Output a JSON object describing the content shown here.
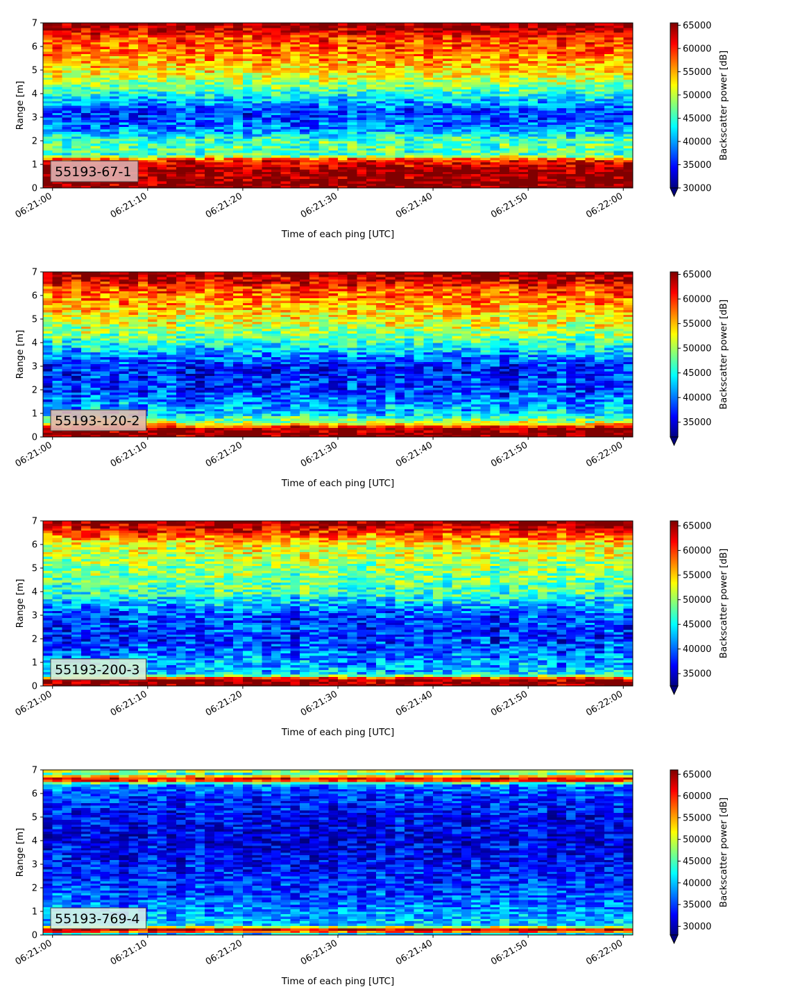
{
  "colors": {
    "colormap": "jet",
    "background": "#ffffff"
  },
  "chart_data": [
    {
      "type": "heatmap",
      "panel_label": "55193-67-1",
      "label_box_color": "#e0b0b0",
      "xlabel": "Time of each ping [UTC]",
      "ylabel": "Range [m]",
      "x_ticks": [
        "06:21:00",
        "06:21:10",
        "06:21:20",
        "06:21:30",
        "06:21:40",
        "06:21:50",
        "06:22:00"
      ],
      "x_range_seconds": [
        -1,
        61
      ],
      "ylim": [
        0,
        7
      ],
      "y_ticks": [
        "0",
        "1",
        "2",
        "3",
        "4",
        "5",
        "6",
        "7"
      ],
      "colorbar_label": "Backscatter power [dB]",
      "colorbar_extend": "min",
      "vmin": 30000,
      "vmax": 65500,
      "colorbar_ticks": [
        "30000",
        "35000",
        "40000",
        "45000",
        "50000",
        "55000",
        "60000",
        "65000"
      ],
      "profile": [
        {
          "range": 0.0,
          "value": 65000
        },
        {
          "range": 0.25,
          "value": 65500
        },
        {
          "range": 0.8,
          "value": 64500
        },
        {
          "range": 1.2,
          "value": 60000
        },
        {
          "range": 1.4,
          "value": 46000
        },
        {
          "range": 2.0,
          "value": 46000
        },
        {
          "range": 2.5,
          "value": 39000
        },
        {
          "range": 3.2,
          "value": 36000
        },
        {
          "range": 4.0,
          "value": 44000
        },
        {
          "range": 4.6,
          "value": 50000
        },
        {
          "range": 5.5,
          "value": 56000
        },
        {
          "range": 6.4,
          "value": 59000
        },
        {
          "range": 6.8,
          "value": 64000
        },
        {
          "range": 7.0,
          "value": 65500
        }
      ]
    },
    {
      "type": "heatmap",
      "panel_label": "55193-120-2",
      "label_box_color": "#e0b8b0",
      "xlabel": "Time of each ping [UTC]",
      "ylabel": "Range [m]",
      "x_ticks": [
        "06:21:00",
        "06:21:10",
        "06:21:20",
        "06:21:30",
        "06:21:40",
        "06:21:50",
        "06:22:00"
      ],
      "x_range_seconds": [
        -1,
        61
      ],
      "ylim": [
        0,
        7
      ],
      "y_ticks": [
        "0",
        "1",
        "2",
        "3",
        "4",
        "5",
        "6",
        "7"
      ],
      "colorbar_label": "Backscatter power [dB]",
      "colorbar_extend": "min",
      "vmin": 32000,
      "vmax": 65500,
      "colorbar_ticks": [
        "35000",
        "40000",
        "45000",
        "50000",
        "55000",
        "60000",
        "65000"
      ],
      "profile": [
        {
          "range": 0.0,
          "value": 65500
        },
        {
          "range": 0.35,
          "value": 65000
        },
        {
          "range": 0.6,
          "value": 52000
        },
        {
          "range": 1.0,
          "value": 43000
        },
        {
          "range": 2.0,
          "value": 38000
        },
        {
          "range": 3.0,
          "value": 37000
        },
        {
          "range": 3.8,
          "value": 44000
        },
        {
          "range": 4.5,
          "value": 50000
        },
        {
          "range": 5.5,
          "value": 55000
        },
        {
          "range": 6.3,
          "value": 59000
        },
        {
          "range": 6.8,
          "value": 64000
        },
        {
          "range": 7.0,
          "value": 65500
        }
      ]
    },
    {
      "type": "heatmap",
      "panel_label": "55193-200-3",
      "label_box_color": "#d8f0d8",
      "xlabel": "Time of each ping [UTC]",
      "ylabel": "Range [m]",
      "x_ticks": [
        "06:21:00",
        "06:21:10",
        "06:21:20",
        "06:21:30",
        "06:21:40",
        "06:21:50",
        "06:22:00"
      ],
      "x_range_seconds": [
        -1,
        61
      ],
      "ylim": [
        0,
        7
      ],
      "y_ticks": [
        "0",
        "1",
        "2",
        "3",
        "4",
        "5",
        "6",
        "7"
      ],
      "colorbar_label": "Backscatter power [dB]",
      "colorbar_extend": "min",
      "vmin": 32500,
      "vmax": 66000,
      "colorbar_ticks": [
        "35000",
        "40000",
        "45000",
        "50000",
        "55000",
        "60000",
        "65000"
      ],
      "profile": [
        {
          "range": 0.0,
          "value": 66000
        },
        {
          "range": 0.3,
          "value": 65000
        },
        {
          "range": 0.5,
          "value": 44000
        },
        {
          "range": 1.2,
          "value": 41000
        },
        {
          "range": 2.0,
          "value": 38000
        },
        {
          "range": 3.0,
          "value": 39000
        },
        {
          "range": 4.0,
          "value": 47000
        },
        {
          "range": 5.0,
          "value": 50000
        },
        {
          "range": 6.0,
          "value": 53000
        },
        {
          "range": 6.5,
          "value": 60000
        },
        {
          "range": 7.0,
          "value": 66000
        }
      ]
    },
    {
      "type": "heatmap",
      "panel_label": "55193-769-4",
      "label_box_color": "#d8f0e8",
      "xlabel": "Time of each ping [UTC]",
      "ylabel": "Range [m]",
      "x_ticks": [
        "06:21:00",
        "06:21:10",
        "06:21:20",
        "06:21:30",
        "06:21:40",
        "06:21:50",
        "06:22:00"
      ],
      "x_range_seconds": [
        -1,
        61
      ],
      "ylim": [
        0,
        7
      ],
      "y_ticks": [
        "0",
        "1",
        "2",
        "3",
        "4",
        "5",
        "6",
        "7"
      ],
      "colorbar_label": "Backscatter power [dB]",
      "colorbar_extend": "min",
      "vmin": 28000,
      "vmax": 66000,
      "colorbar_ticks": [
        "30000",
        "35000",
        "40000",
        "45000",
        "50000",
        "55000",
        "60000",
        "65000"
      ],
      "profile": [
        {
          "range": 0.0,
          "value": 33000
        },
        {
          "range": 0.2,
          "value": 66000
        },
        {
          "range": 0.3,
          "value": 60000
        },
        {
          "range": 0.4,
          "value": 41000
        },
        {
          "range": 1.0,
          "value": 38000
        },
        {
          "range": 2.0,
          "value": 35000
        },
        {
          "range": 3.0,
          "value": 33000
        },
        {
          "range": 4.0,
          "value": 32000
        },
        {
          "range": 5.0,
          "value": 32500
        },
        {
          "range": 6.0,
          "value": 35000
        },
        {
          "range": 6.4,
          "value": 38000
        },
        {
          "range": 6.6,
          "value": 66000
        },
        {
          "range": 6.85,
          "value": 44000
        },
        {
          "range": 7.0,
          "value": 52000
        }
      ]
    }
  ]
}
